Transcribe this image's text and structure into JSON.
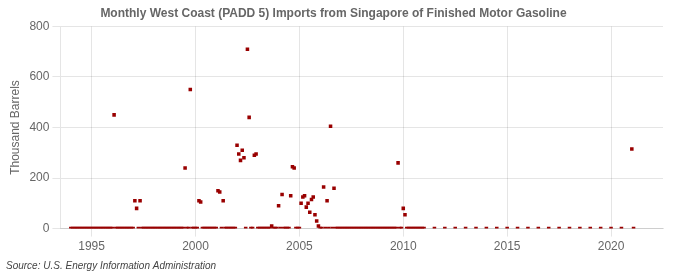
{
  "chart_data": {
    "type": "scatter",
    "title": "Monthly West Coast (PADD 5) Imports from Singapore of Finished Motor Gasoline",
    "ylabel": "Thousand Barrels",
    "annotations": [
      "Source: U.S. Energy Information Administration"
    ],
    "color": "#990000",
    "marker": "square",
    "grid": true,
    "xlim": [
      1993.5,
      2022.5
    ],
    "xticks": [
      1995,
      2000,
      2005,
      2010,
      2015,
      2020
    ],
    "ylim": [
      0,
      800
    ],
    "yticks": [
      0,
      200,
      400,
      600,
      800
    ],
    "x": [
      1994.0,
      1994.083,
      1994.167,
      1994.25,
      1994.333,
      1994.417,
      1994.5,
      1994.583,
      1994.667,
      1994.75,
      1994.833,
      1994.917,
      1995.0,
      1995.083,
      1995.167,
      1995.25,
      1995.333,
      1995.417,
      1995.5,
      1995.583,
      1995.667,
      1995.75,
      1995.833,
      1995.917,
      1996.0,
      1996.083,
      1996.167,
      1996.25,
      1996.333,
      1996.417,
      1996.5,
      1996.583,
      1996.667,
      1996.75,
      1996.833,
      1996.917,
      1997.0,
      1997.083,
      1997.167,
      1997.25,
      1997.333,
      1997.417,
      1997.5,
      1997.583,
      1997.667,
      1997.75,
      1997.833,
      1997.917,
      1998.0,
      1998.083,
      1998.167,
      1998.25,
      1998.333,
      1998.417,
      1998.5,
      1998.583,
      1998.667,
      1998.75,
      1998.833,
      1998.917,
      1999.0,
      1999.083,
      1999.167,
      1999.25,
      1999.333,
      1999.417,
      1999.5,
      1999.583,
      1999.667,
      1999.75,
      1999.833,
      1999.917,
      2000.0,
      2000.083,
      2000.167,
      2000.25,
      2000.333,
      2000.417,
      2000.5,
      2000.583,
      2000.667,
      2000.75,
      2000.833,
      2000.917,
      2001.0,
      2001.083,
      2001.167,
      2001.25,
      2001.333,
      2001.417,
      2001.5,
      2001.583,
      2001.667,
      2001.75,
      2001.833,
      2001.917,
      2002.0,
      2002.083,
      2002.167,
      2002.25,
      2002.333,
      2002.417,
      2002.5,
      2002.583,
      2002.667,
      2002.75,
      2002.833,
      2002.917,
      2003.0,
      2003.083,
      2003.167,
      2003.25,
      2003.333,
      2003.417,
      2003.5,
      2003.583,
      2003.667,
      2003.75,
      2003.833,
      2003.917,
      2004.0,
      2004.083,
      2004.167,
      2004.25,
      2004.333,
      2004.417,
      2004.5,
      2004.583,
      2004.667,
      2004.75,
      2004.833,
      2004.917,
      2005.0,
      2005.083,
      2005.167,
      2005.25,
      2005.333,
      2005.417,
      2005.5,
      2005.583,
      2005.667,
      2005.75,
      2005.833,
      2005.917,
      2006.0,
      2006.083,
      2006.167,
      2006.25,
      2006.333,
      2006.417,
      2006.5,
      2006.583,
      2006.667,
      2006.75,
      2006.833,
      2006.917,
      2007.0,
      2007.083,
      2007.167,
      2007.25,
      2007.333,
      2007.417,
      2007.5,
      2007.583,
      2007.667,
      2007.75,
      2007.833,
      2007.917,
      2008.0,
      2008.083,
      2008.167,
      2008.25,
      2008.333,
      2008.417,
      2008.5,
      2008.583,
      2008.667,
      2008.75,
      2008.833,
      2008.917,
      2009.0,
      2009.083,
      2009.167,
      2009.25,
      2009.333,
      2009.417,
      2009.5,
      2009.583,
      2009.667,
      2009.75,
      2009.833,
      2009.917,
      2010.0,
      2010.083,
      2010.167,
      2010.25,
      2010.333,
      2010.417,
      2010.5,
      2010.583,
      2010.667,
      2010.75,
      2010.833,
      2010.917,
      2011.0,
      2011.5,
      2012.0,
      2012.5,
      2013.0,
      2013.5,
      2014.0,
      2014.5,
      2015.0,
      2015.5,
      2016.0,
      2016.5,
      2017.0,
      2017.5,
      2018.0,
      2018.5,
      2019.0,
      2019.5,
      2020.0,
      2020.5,
      2021.0,
      2021.083
    ],
    "values": [
      0,
      0,
      0,
      0,
      0,
      0,
      0,
      0,
      0,
      0,
      0,
      0,
      0,
      0,
      0,
      0,
      0,
      0,
      0,
      0,
      0,
      0,
      0,
      0,
      0,
      450,
      0,
      0,
      0,
      0,
      0,
      0,
      0,
      0,
      0,
      0,
      0,
      110,
      80,
      0,
      110,
      0,
      0,
      0,
      0,
      0,
      0,
      0,
      0,
      0,
      0,
      0,
      0,
      0,
      0,
      0,
      0,
      0,
      0,
      0,
      0,
      0,
      0,
      0,
      0,
      0,
      240,
      0,
      0,
      550,
      0,
      0,
      0,
      0,
      110,
      105,
      0,
      0,
      0,
      0,
      0,
      0,
      0,
      0,
      0,
      150,
      145,
      0,
      110,
      0,
      0,
      0,
      0,
      0,
      0,
      0,
      330,
      295,
      270,
      310,
      280,
      0,
      710,
      440,
      0,
      0,
      290,
      295,
      0,
      0,
      0,
      0,
      0,
      0,
      0,
      0,
      10,
      0,
      0,
      0,
      90,
      0,
      135,
      0,
      0,
      0,
      0,
      130,
      245,
      240,
      0,
      0,
      0,
      100,
      125,
      130,
      85,
      100,
      65,
      115,
      125,
      55,
      30,
      10,
      0,
      0,
      165,
      0,
      110,
      0,
      405,
      0,
      160,
      0,
      0,
      0,
      0,
      0,
      0,
      0,
      0,
      0,
      0,
      0,
      0,
      0,
      0,
      0,
      0,
      0,
      0,
      0,
      0,
      0,
      0,
      0,
      0,
      0,
      0,
      0,
      0,
      0,
      0,
      0,
      0,
      0,
      0,
      0,
      0,
      260,
      0,
      0,
      80,
      55,
      0,
      0,
      0,
      0,
      0,
      0,
      0,
      0,
      0,
      0,
      0,
      0,
      0,
      0,
      0,
      0,
      0,
      0,
      0,
      0,
      0,
      0,
      0,
      0,
      0,
      0,
      0,
      0,
      0,
      0,
      315,
      0
    ]
  }
}
